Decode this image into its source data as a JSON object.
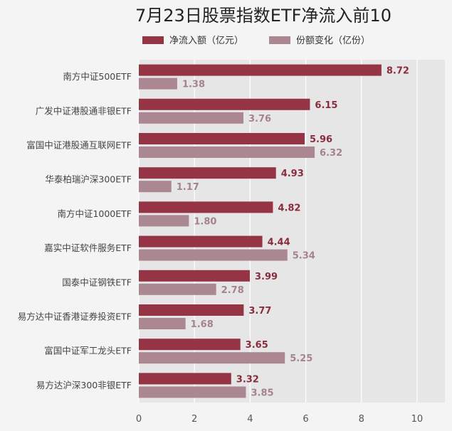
{
  "chart_data": {
    "type": "bar",
    "orientation": "horizontal",
    "title": "7月23日股票指数ETF净流入前10",
    "categories": [
      "南方中证500ETF",
      "广发中证港股通非银ETF",
      "富国中证港股通互联网ETF",
      "华泰柏瑞沪深300ETF",
      "南方中证1000ETF",
      "嘉实中证软件服务ETF",
      "国泰中证钢铁ETF",
      "易方达中证香港证券投资ETF",
      "富国中证军工龙头ETF",
      "易方达沪深300非银ETF"
    ],
    "series": [
      {
        "name": "净流入额（亿元）",
        "color": "#943444",
        "values": [
          8.72,
          6.15,
          5.96,
          4.93,
          4.82,
          4.44,
          3.99,
          3.77,
          3.65,
          3.32
        ],
        "labels": [
          "8.72",
          "6.15",
          "5.96",
          "4.93",
          "4.82",
          "4.44",
          "3.99",
          "3.77",
          "3.65",
          "3.32"
        ]
      },
      {
        "name": "份额变化（亿份）",
        "color": "#ab8891",
        "values": [
          1.38,
          3.76,
          6.32,
          1.17,
          1.8,
          5.34,
          2.78,
          1.68,
          5.25,
          3.85
        ],
        "labels": [
          "1.38",
          "3.76",
          "6.32",
          "1.17",
          "1.80",
          "5.34",
          "2.78",
          "1.68",
          "5.25",
          "3.85"
        ]
      }
    ],
    "xlim": [
      0,
      11
    ],
    "xticks": [
      "0",
      "2",
      "4",
      "6",
      "8",
      "10"
    ],
    "xtick_values": [
      0,
      2,
      4,
      6,
      8,
      10
    ],
    "xlabel": "",
    "ylabel": "",
    "grid": true,
    "legend": "top-center"
  }
}
